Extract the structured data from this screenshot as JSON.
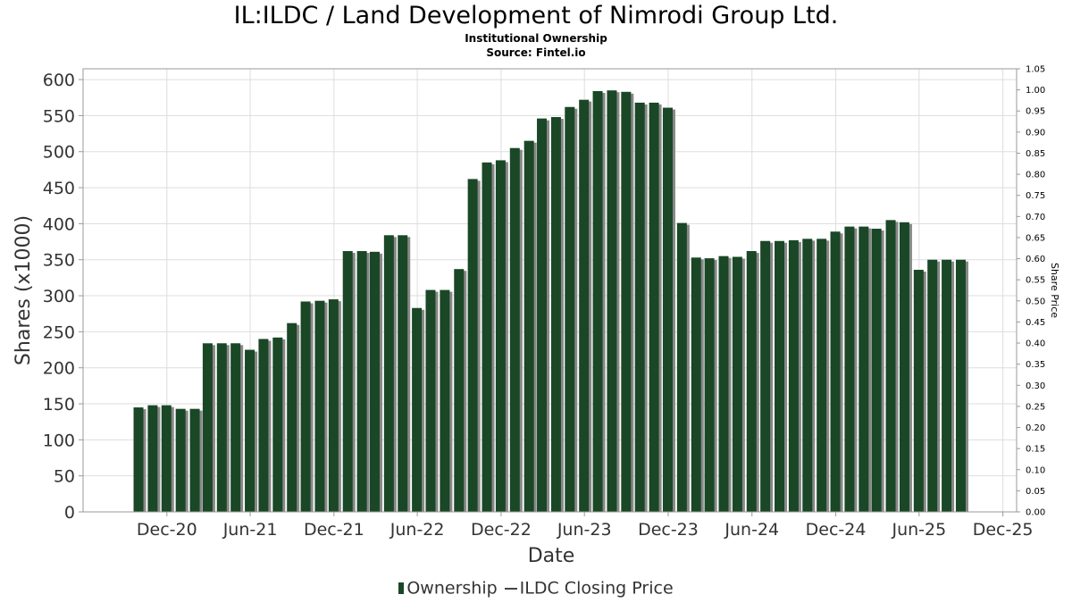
{
  "title": "IL:ILDC / Land Development of Nimrodi Group Ltd.",
  "subtitle": "Institutional Ownership",
  "source": "Source: Fintel.io",
  "legend": {
    "ownership_label": "Ownership",
    "price_label": "ILDC Closing Price"
  },
  "colors": {
    "bar": "#1a4726",
    "bar_shadow": "#888888",
    "grid": "#dddddd",
    "axis": "#999999"
  },
  "chart_data": {
    "type": "bar",
    "xlabel": "Date",
    "ylabel": "Shares (x1000)",
    "y2label": "Share Price",
    "ylim": [
      0,
      615
    ],
    "y2lim": [
      0,
      1.05
    ],
    "yticks": [
      0,
      50,
      100,
      150,
      200,
      250,
      300,
      350,
      400,
      450,
      500,
      550,
      600
    ],
    "y2ticks": [
      "0.00",
      "0.05",
      "0.10",
      "0.15",
      "0.20",
      "0.25",
      "0.30",
      "0.35",
      "0.40",
      "0.45",
      "0.50",
      "0.55",
      "0.60",
      "0.65",
      "0.70",
      "0.75",
      "0.80",
      "0.85",
      "0.90",
      "0.95",
      "1.00",
      "1.05"
    ],
    "xlim": [
      "2020-06-01",
      "2025-12-31"
    ],
    "xticks": [
      {
        "label": "Dec-20",
        "date": "2020-12-01"
      },
      {
        "label": "Jun-21",
        "date": "2021-06-01"
      },
      {
        "label": "Dec-21",
        "date": "2021-12-01"
      },
      {
        "label": "Jun-22",
        "date": "2022-06-01"
      },
      {
        "label": "Dec-22",
        "date": "2022-12-01"
      },
      {
        "label": "Jun-23",
        "date": "2023-06-01"
      },
      {
        "label": "Dec-23",
        "date": "2023-12-01"
      },
      {
        "label": "Jun-24",
        "date": "2024-06-01"
      },
      {
        "label": "Dec-24",
        "date": "2024-12-01"
      },
      {
        "label": "Jun-25",
        "date": "2025-06-01"
      },
      {
        "label": "Dec-25",
        "date": "2025-12-01"
      }
    ],
    "grid": true,
    "legend_position": "bottom",
    "series": [
      {
        "name": "Ownership",
        "points": [
          [
            "2020-09-30",
            145
          ],
          [
            "2020-10-31",
            148
          ],
          [
            "2020-11-30",
            148
          ],
          [
            "2020-12-31",
            143
          ],
          [
            "2021-01-31",
            143
          ],
          [
            "2021-02-28",
            234
          ],
          [
            "2021-03-31",
            234
          ],
          [
            "2021-04-30",
            234
          ],
          [
            "2021-05-31",
            225
          ],
          [
            "2021-06-30",
            240
          ],
          [
            "2021-07-31",
            242
          ],
          [
            "2021-08-31",
            262
          ],
          [
            "2021-09-30",
            292
          ],
          [
            "2021-10-31",
            293
          ],
          [
            "2021-11-30",
            295
          ],
          [
            "2021-12-31",
            362
          ],
          [
            "2022-01-31",
            362
          ],
          [
            "2022-02-28",
            361
          ],
          [
            "2022-03-31",
            384
          ],
          [
            "2022-04-30",
            384
          ],
          [
            "2022-05-31",
            283
          ],
          [
            "2022-06-30",
            308
          ],
          [
            "2022-07-31",
            308
          ],
          [
            "2022-08-31",
            337
          ],
          [
            "2022-09-30",
            462
          ],
          [
            "2022-10-31",
            485
          ],
          [
            "2022-11-30",
            488
          ],
          [
            "2022-12-31",
            505
          ],
          [
            "2023-01-31",
            515
          ],
          [
            "2023-02-28",
            546
          ],
          [
            "2023-03-31",
            548
          ],
          [
            "2023-04-30",
            562
          ],
          [
            "2023-05-31",
            572
          ],
          [
            "2023-06-30",
            584
          ],
          [
            "2023-07-31",
            585
          ],
          [
            "2023-08-31",
            583
          ],
          [
            "2023-09-30",
            568
          ],
          [
            "2023-10-31",
            568
          ],
          [
            "2023-11-30",
            561
          ],
          [
            "2023-12-31",
            401
          ],
          [
            "2024-01-31",
            353
          ],
          [
            "2024-02-29",
            352
          ],
          [
            "2024-03-31",
            355
          ],
          [
            "2024-04-30",
            354
          ],
          [
            "2024-05-31",
            362
          ],
          [
            "2024-06-30",
            376
          ],
          [
            "2024-07-31",
            376
          ],
          [
            "2024-08-31",
            377
          ],
          [
            "2024-09-30",
            379
          ],
          [
            "2024-10-31",
            379
          ],
          [
            "2024-11-30",
            389
          ],
          [
            "2024-12-31",
            396
          ],
          [
            "2025-01-31",
            396
          ],
          [
            "2025-02-28",
            393
          ],
          [
            "2025-03-31",
            405
          ],
          [
            "2025-04-30",
            402
          ],
          [
            "2025-05-31",
            336
          ],
          [
            "2025-06-30",
            350
          ],
          [
            "2025-07-31",
            350
          ],
          [
            "2025-08-31",
            350
          ]
        ]
      }
    ]
  }
}
